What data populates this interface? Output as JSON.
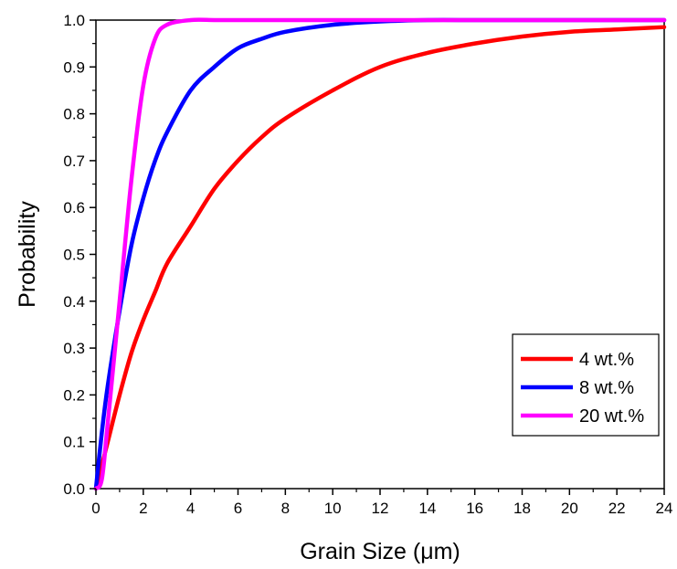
{
  "chart_data": {
    "type": "line",
    "title": "",
    "xlabel": "Grain Size (μm)",
    "ylabel": "Probability",
    "xlim": [
      0,
      24
    ],
    "ylim": [
      0,
      1.0
    ],
    "x_ticks": [
      0,
      2,
      4,
      6,
      8,
      10,
      12,
      14,
      16,
      18,
      20,
      22,
      24
    ],
    "y_ticks": [
      0.0,
      0.1,
      0.2,
      0.3,
      0.4,
      0.5,
      0.6,
      0.7,
      0.8,
      0.9,
      1.0
    ],
    "x_tick_labels": [
      "0",
      "2",
      "4",
      "6",
      "8",
      "10",
      "12",
      "14",
      "16",
      "18",
      "20",
      "22",
      "24"
    ],
    "y_tick_labels": [
      "0.0",
      "0.1",
      "0.2",
      "0.3",
      "0.4",
      "0.5",
      "0.6",
      "0.7",
      "0.8",
      "0.9",
      "1.0"
    ],
    "grid": false,
    "legend_position": "bottom-right",
    "x": [
      0,
      0.25,
      0.5,
      1,
      1.5,
      2,
      2.5,
      3,
      4,
      5,
      6,
      7,
      8,
      10,
      12,
      14,
      16,
      18,
      20,
      22,
      24
    ],
    "series": [
      {
        "name": "4 wt.%",
        "color": "#ff0000",
        "values": [
          0.0,
          0.05,
          0.1,
          0.2,
          0.29,
          0.36,
          0.42,
          0.48,
          0.56,
          0.64,
          0.7,
          0.75,
          0.79,
          0.85,
          0.9,
          0.93,
          0.95,
          0.965,
          0.975,
          0.98,
          0.985
        ]
      },
      {
        "name": "8 wt.%",
        "color": "#0000ff",
        "values": [
          0.0,
          0.12,
          0.22,
          0.38,
          0.52,
          0.62,
          0.7,
          0.76,
          0.85,
          0.9,
          0.94,
          0.96,
          0.975,
          0.99,
          0.997,
          1.0,
          1.0,
          1.0,
          1.0,
          1.0,
          1.0
        ]
      },
      {
        "name": "20 wt.%",
        "color": "#ff00ff",
        "values": [
          0.0,
          0.02,
          0.14,
          0.4,
          0.66,
          0.86,
          0.96,
          0.99,
          1.0,
          1.0,
          1.0,
          1.0,
          1.0,
          1.0,
          1.0,
          1.0,
          1.0,
          1.0,
          1.0,
          1.0,
          1.0
        ]
      }
    ]
  }
}
